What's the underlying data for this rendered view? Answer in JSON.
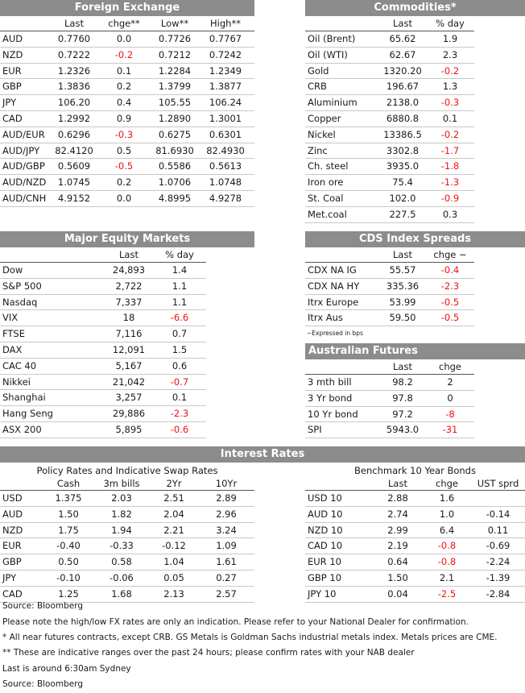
{
  "fx": {
    "title": "Foreign Exchange",
    "cols": [
      "Last",
      "chge**",
      "Low**",
      "High**"
    ],
    "rows": [
      {
        "label": "AUD",
        "last": "0.7760",
        "chge": "0.0",
        "low": "0.7726",
        "high": "0.7767"
      },
      {
        "label": "NZD",
        "last": "0.7222",
        "chge": "-0.2",
        "low": "0.7212",
        "high": "0.7242"
      },
      {
        "label": "EUR",
        "last": "1.2326",
        "chge": "0.1",
        "low": "1.2284",
        "high": "1.2349"
      },
      {
        "label": "GBP",
        "last": "1.3836",
        "chge": "0.2",
        "low": "1.3799",
        "high": "1.3877"
      },
      {
        "label": "JPY",
        "last": "106.20",
        "chge": "0.4",
        "low": "105.55",
        "high": "106.24"
      },
      {
        "label": "CAD",
        "last": "1.2992",
        "chge": "0.9",
        "low": "1.2890",
        "high": "1.3001"
      },
      {
        "label": "AUD/EUR",
        "last": "0.6296",
        "chge": "-0.3",
        "low": "0.6275",
        "high": "0.6301"
      },
      {
        "label": "AUD/JPY",
        "last": "82.4120",
        "chge": "0.5",
        "low": "81.6930",
        "high": "82.4930"
      },
      {
        "label": "AUD/GBP",
        "last": "0.5609",
        "chge": "-0.5",
        "low": "0.5586",
        "high": "0.5613"
      },
      {
        "label": "AUD/NZD",
        "last": "1.0745",
        "chge": "0.2",
        "low": "1.0706",
        "high": "1.0748"
      },
      {
        "label": "AUD/CNH",
        "last": "4.9152",
        "chge": "0.0",
        "low": "4.8995",
        "high": "4.9278"
      }
    ]
  },
  "commodities": {
    "title": "Commodities*",
    "cols": [
      "Last",
      "% day"
    ],
    "rows": [
      {
        "label": "Oil (Brent)",
        "last": "65.62",
        "chge": "1.9"
      },
      {
        "label": "Oil (WTI)",
        "last": "62.67",
        "chge": "2.3"
      },
      {
        "label": "Gold",
        "last": "1320.20",
        "chge": "-0.2"
      },
      {
        "label": "CRB",
        "last": "196.67",
        "chge": "1.3"
      },
      {
        "label": "Aluminium",
        "last": "2138.0",
        "chge": "-0.3"
      },
      {
        "label": "Copper",
        "last": "6880.8",
        "chge": "0.1"
      },
      {
        "label": "Nickel",
        "last": "13386.5",
        "chge": "-0.2"
      },
      {
        "label": "Zinc",
        "last": "3302.8",
        "chge": "-1.7"
      },
      {
        "label": "Ch. steel",
        "last": "3935.0",
        "chge": "-1.8"
      },
      {
        "label": "Iron ore",
        "last": "75.4",
        "chge": "-1.3"
      },
      {
        "label": "St. Coal",
        "last": "102.0",
        "chge": "-0.9"
      },
      {
        "label": "Met.coal",
        "last": "227.5",
        "chge": "0.3"
      }
    ]
  },
  "equity": {
    "title": "Major Equity Markets",
    "cols": [
      "Last",
      "% day"
    ],
    "rows": [
      {
        "label": "Dow",
        "last": "24,893",
        "chge": "1.4"
      },
      {
        "label": "S&P 500",
        "last": "2,722",
        "chge": "1.1"
      },
      {
        "label": "Nasdaq",
        "last": "7,337",
        "chge": "1.1"
      },
      {
        "label": "VIX",
        "last": "18",
        "chge": "-6.6"
      },
      {
        "label": "FTSE",
        "last": "7,116",
        "chge": "0.7"
      },
      {
        "label": "DAX",
        "last": "12,091",
        "chge": "1.5"
      },
      {
        "label": "CAC 40",
        "last": "5,167",
        "chge": "0.6"
      },
      {
        "label": "Nikkei",
        "last": "21,042",
        "chge": "-0.7"
      },
      {
        "label": "Shanghai",
        "last": "3,257",
        "chge": "0.1"
      },
      {
        "label": "Hang Seng",
        "last": "29,886",
        "chge": "-2.3"
      },
      {
        "label": "ASX 200",
        "last": "5,895",
        "chge": "-0.6"
      }
    ]
  },
  "cds": {
    "title": "CDS Index Spreads",
    "cols": [
      "Last",
      "chge ~"
    ],
    "rows": [
      {
        "label": "CDX NA IG",
        "last": "55.57",
        "chge": "-0.4"
      },
      {
        "label": "CDX NA HY",
        "last": "335.36",
        "chge": "-2.3"
      },
      {
        "label": "Itrx Europe",
        "last": "53.99",
        "chge": "-0.5"
      },
      {
        "label": "Itrx Aus",
        "last": "59.50",
        "chge": "-0.5"
      }
    ],
    "footnote": "~Expressed in bps"
  },
  "aus_futures": {
    "title": "Australian Futures",
    "cols": [
      "Last",
      "chge"
    ],
    "rows": [
      {
        "label": "3 mth bill",
        "last": "98.2",
        "chge": "2"
      },
      {
        "label": "3 Yr bond",
        "last": "97.8",
        "chge": "0"
      },
      {
        "label": "10 Yr bond",
        "last": "97.2",
        "chge": "-8"
      },
      {
        "label": "SPI",
        "last": "5943.0",
        "chge": "-31"
      }
    ]
  },
  "interest": {
    "title": "Interest Rates",
    "policy": {
      "title": "Policy Rates and Indicative Swap Rates",
      "cols": [
        "Cash",
        "3m bills",
        "2Yr",
        "10Yr"
      ],
      "rows": [
        {
          "label": "USD",
          "cash": "1.375",
          "bills": "2.03",
          "y2": "2.51",
          "y10": "2.89"
        },
        {
          "label": "AUD",
          "cash": "1.50",
          "bills": "1.82",
          "y2": "2.04",
          "y10": "2.96"
        },
        {
          "label": "NZD",
          "cash": "1.75",
          "bills": "1.94",
          "y2": "2.21",
          "y10": "3.24"
        },
        {
          "label": "EUR",
          "cash": "-0.40",
          "bills": "-0.33",
          "y2": "-0.12",
          "y10": "1.09"
        },
        {
          "label": "GBP",
          "cash": "0.50",
          "bills": "0.58",
          "y2": "1.04",
          "y10": "1.61"
        },
        {
          "label": "JPY",
          "cash": "-0.10",
          "bills": "-0.06",
          "y2": "0.05",
          "y10": "0.27"
        },
        {
          "label": "CAD",
          "cash": "1.25",
          "bills": "1.68",
          "y2": "2.13",
          "y10": "2.57"
        }
      ]
    },
    "bonds": {
      "title": "Benchmark 10 Year Bonds",
      "cols": [
        "Last",
        "chge",
        "UST sprd"
      ],
      "rows": [
        {
          "label": "USD 10",
          "last": "2.88",
          "chge": "1.6",
          "sprd": ""
        },
        {
          "label": "AUD 10",
          "last": "2.74",
          "chge": "1.0",
          "sprd": "-0.14"
        },
        {
          "label": "NZD 10",
          "last": "2.99",
          "chge": "6.4",
          "sprd": "0.11"
        },
        {
          "label": "CAD 10",
          "last": "2.19",
          "chge": "-0.8",
          "sprd": "-0.69"
        },
        {
          "label": "EUR 10",
          "last": "0.64",
          "chge": "-0.8",
          "sprd": "-2.24"
        },
        {
          "label": "GBP 10",
          "last": "1.50",
          "chge": "2.1",
          "sprd": "-1.39"
        },
        {
          "label": "JPY 10",
          "last": "0.04",
          "chge": "-2.5",
          "sprd": "-2.84"
        }
      ]
    }
  },
  "notes": [
    "Source: Bloomberg",
    "Please note the high/low FX rates are only an indication. Please refer to your National Dealer for confirmation.",
    "* All near futures contracts, except CRB.  GS Metals is Goldman Sachs industrial metals index.  Metals prices are CME.",
    "** These are indicative ranges over the past 24 hours; please confirm rates with your NAB dealer",
    "Last is around 6:30am Sydney",
    "Source: Bloomberg"
  ],
  "colors": {
    "header_bg": "#8c8c8c",
    "negative": "#ee1111"
  }
}
